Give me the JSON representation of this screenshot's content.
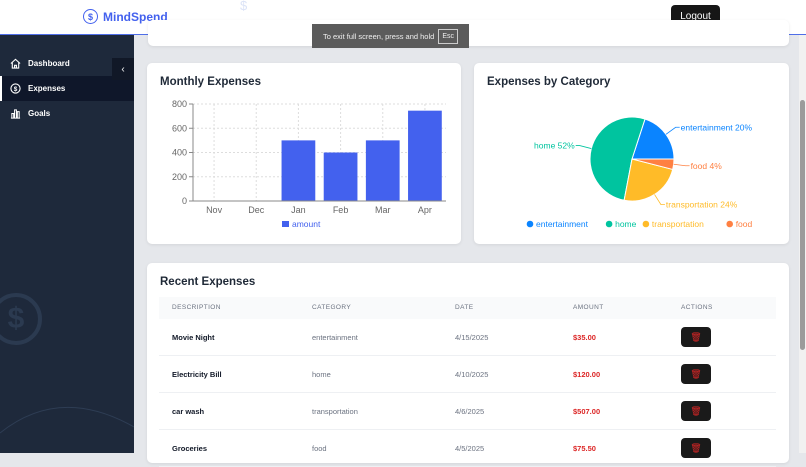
{
  "header": {
    "brand": "MindSpend",
    "logout_label": "Logout"
  },
  "toast": {
    "text": "To exit full screen, press and hold",
    "key": "Esc"
  },
  "sidebar": {
    "items": [
      {
        "label": "Dashboard",
        "icon": "home-icon"
      },
      {
        "label": "Expenses",
        "icon": "dollar-icon",
        "active": true
      },
      {
        "label": "Goals",
        "icon": "bar-chart-icon"
      }
    ]
  },
  "monthly": {
    "title": "Monthly Expenses"
  },
  "category": {
    "title": "Expenses by Category"
  },
  "chart_data": [
    {
      "type": "bar",
      "title": "Monthly Expenses",
      "categories": [
        "Nov",
        "Dec",
        "Jan",
        "Feb",
        "Mar",
        "Apr"
      ],
      "series": [
        {
          "name": "amount",
          "values": [
            0,
            0,
            500,
            400,
            500,
            745
          ],
          "color": "#4361ee"
        }
      ],
      "ylim": [
        0,
        800
      ],
      "yticks": [
        0,
        200,
        400,
        600,
        800
      ],
      "grid": true,
      "legend": "bottom"
    },
    {
      "type": "pie",
      "title": "Expenses by Category",
      "labels": [
        "entertainment",
        "home",
        "transportation",
        "food"
      ],
      "values": [
        20,
        52,
        24,
        4
      ],
      "colors": [
        "#0a84ff",
        "#00c49f",
        "#ffbb28",
        "#ff8042"
      ],
      "legend": "bottom"
    }
  ],
  "recent": {
    "title": "Recent Expenses",
    "columns": [
      "DESCRIPTION",
      "CATEGORY",
      "DATE",
      "AMOUNT",
      "ACTIONS"
    ],
    "rows": [
      {
        "description": "Movie Night",
        "category": "entertainment",
        "date": "4/15/2025",
        "amount": "$35.00"
      },
      {
        "description": "Electricity Bill",
        "category": "home",
        "date": "4/10/2025",
        "amount": "$120.00"
      },
      {
        "description": "car wash",
        "category": "transportation",
        "date": "4/6/2025",
        "amount": "$507.00"
      },
      {
        "description": "Groceries",
        "category": "food",
        "date": "4/5/2025",
        "amount": "$75.50"
      }
    ]
  }
}
